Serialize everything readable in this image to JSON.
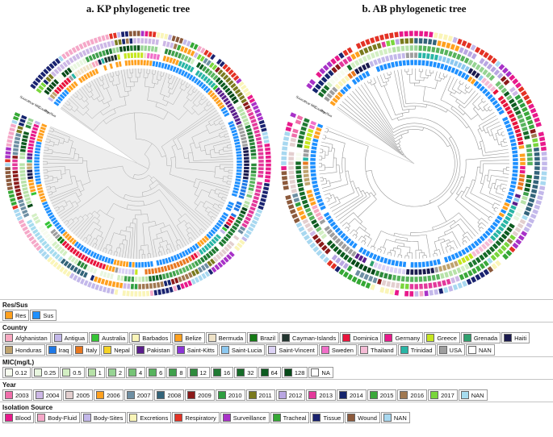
{
  "figure": {
    "panels": [
      {
        "id": "kp",
        "title": "a. KP phylogenetic tree",
        "leaves": 200,
        "seed": 11,
        "chain": 0.3,
        "disc": true,
        "ring_labels": [
          "Res/Sus",
          "Country",
          "MIC",
          "Year",
          "Source"
        ],
        "rings": [
          {
            "group": "res_sus",
            "switch": 0.22,
            "weights": [
              0.18,
              0.82
            ]
          },
          {
            "group": "country",
            "switch": 0.22
          },
          {
            "group": "mic",
            "switch": 0.3
          },
          {
            "group": "year",
            "switch": 0.26
          },
          {
            "group": "source",
            "switch": 0.24
          }
        ]
      },
      {
        "id": "ab",
        "title": "b. AB phylogenetic tree",
        "leaves": 160,
        "seed": 29,
        "chain": 0.45,
        "disc": false,
        "ring_labels": [
          "Res/Sus",
          "Country",
          "MIC",
          "Year",
          "Source"
        ],
        "rings": [
          {
            "group": "res_sus",
            "switch": 0.2,
            "weights": [
              0.15,
              0.85
            ]
          },
          {
            "group": "country",
            "switch": 0.2
          },
          {
            "group": "mic",
            "switch": 0.3
          },
          {
            "group": "year",
            "switch": 0.25
          },
          {
            "group": "source",
            "switch": 0.3
          }
        ]
      }
    ]
  },
  "legend": {
    "res_sus": {
      "title": "Res/Sus",
      "items": [
        {
          "label": "Res",
          "color": "#FFA01E"
        },
        {
          "label": "Sus",
          "color": "#1E90FF"
        }
      ]
    },
    "country": {
      "title": "Country",
      "items": [
        {
          "label": "Afghanistan",
          "color": "#F8A8C0"
        },
        {
          "label": "Antigua",
          "color": "#C3B8EA"
        },
        {
          "label": "Australia",
          "color": "#35C435"
        },
        {
          "label": "Barbados",
          "color": "#FAF5B8"
        },
        {
          "label": "Belize",
          "color": "#FFA01E"
        },
        {
          "label": "Bermuda",
          "color": "#EFE3C8"
        },
        {
          "label": "Brazil",
          "color": "#157A15"
        },
        {
          "label": "Cayman-Islands",
          "color": "#22352F"
        },
        {
          "label": "Dominica",
          "color": "#E8143C"
        },
        {
          "label": "Germany",
          "color": "#E8198B"
        },
        {
          "label": "Greece",
          "color": "#C6E620"
        },
        {
          "label": "Grenada",
          "color": "#2FA06E"
        },
        {
          "label": "Haiti",
          "color": "#1A1A4E"
        },
        {
          "label": "Honduras",
          "color": "#BFA36E"
        },
        {
          "label": "Iraq",
          "color": "#1E78E6"
        },
        {
          "label": "Italy",
          "color": "#E87820"
        },
        {
          "label": "Nepal",
          "color": "#F5D327"
        },
        {
          "label": "Pakistan",
          "color": "#5A1E8C"
        },
        {
          "label": "Saint-Kitts",
          "color": "#8C35D6"
        },
        {
          "label": "Saint-Lucia",
          "color": "#8CC8F0"
        },
        {
          "label": "Saint-Vincent",
          "color": "#DCD2F5"
        },
        {
          "label": "Sweden",
          "color": "#F06EC8"
        },
        {
          "label": "Thailand",
          "color": "#F5BBD5"
        },
        {
          "label": "Trinidad",
          "color": "#28B5A5"
        },
        {
          "label": "USA",
          "color": "#9E9E9E"
        },
        {
          "label": "NAN",
          "color": "#FFFFFF"
        }
      ]
    },
    "mic": {
      "title": "MIC(mg/L)",
      "items": [
        {
          "label": "0.12",
          "color": "#F7FCEF"
        },
        {
          "label": "0.25",
          "color": "#E8F6DF"
        },
        {
          "label": "0.5",
          "color": "#D3EFC3"
        },
        {
          "label": "1",
          "color": "#B7E2A8"
        },
        {
          "label": "2",
          "color": "#97D494"
        },
        {
          "label": "4",
          "color": "#76C476"
        },
        {
          "label": "6",
          "color": "#57B35D"
        },
        {
          "label": "8",
          "color": "#3FA04B"
        },
        {
          "label": "12",
          "color": "#2E8B3C"
        },
        {
          "label": "16",
          "color": "#1F7A32"
        },
        {
          "label": "32",
          "color": "#166B28"
        },
        {
          "label": "64",
          "color": "#0D5B20"
        },
        {
          "label": "128",
          "color": "#064A18"
        },
        {
          "label": "NA",
          "color": "#FFFFFF"
        }
      ]
    },
    "year": {
      "title": "Year",
      "items": [
        {
          "label": "2003",
          "color": "#F06EAA"
        },
        {
          "label": "2004",
          "color": "#CDB8E6"
        },
        {
          "label": "2005",
          "color": "#E3CFCF"
        },
        {
          "label": "2006",
          "color": "#FFA01E"
        },
        {
          "label": "2007",
          "color": "#6E8FA3"
        },
        {
          "label": "2008",
          "color": "#33647A"
        },
        {
          "label": "2009",
          "color": "#8B1A1A"
        },
        {
          "label": "2010",
          "color": "#2E9E3F"
        },
        {
          "label": "2011",
          "color": "#7A7A1E"
        },
        {
          "label": "2012",
          "color": "#B9A6E2"
        },
        {
          "label": "2013",
          "color": "#E3399B"
        },
        {
          "label": "2014",
          "color": "#15256E"
        },
        {
          "label": "2015",
          "color": "#3BA83B"
        },
        {
          "label": "2016",
          "color": "#A07850"
        },
        {
          "label": "2017",
          "color": "#79D63C"
        },
        {
          "label": "NAN",
          "color": "#A6DCEF"
        }
      ]
    },
    "source": {
      "title": "Isolation Source",
      "items": [
        {
          "label": "Blood",
          "color": "#E8198B"
        },
        {
          "label": "Body-Fluid",
          "color": "#F5A8C8"
        },
        {
          "label": "Body-Sites",
          "color": "#C3B8EA"
        },
        {
          "label": "Excretions",
          "color": "#FAF5B8"
        },
        {
          "label": "Respiratory",
          "color": "#E33225"
        },
        {
          "label": "Surveillance",
          "color": "#A832C8"
        },
        {
          "label": "Tracheal",
          "color": "#35A835"
        },
        {
          "label": "Tissue",
          "color": "#1A2370"
        },
        {
          "label": "Wound",
          "color": "#8C5A3C"
        },
        {
          "label": "NAN",
          "color": "#A8D8F0"
        }
      ]
    }
  }
}
